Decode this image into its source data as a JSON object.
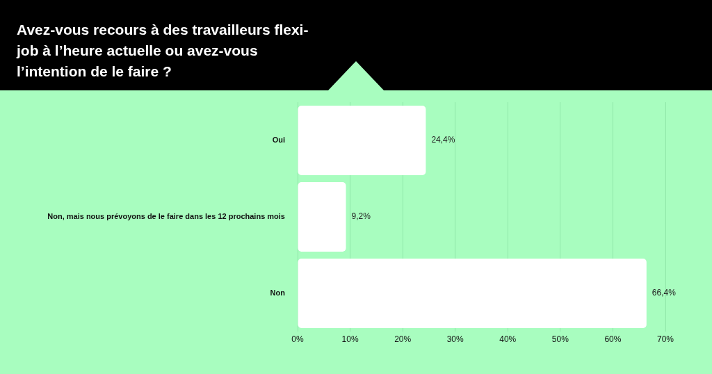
{
  "chart_data": {
    "type": "bar",
    "orientation": "horizontal",
    "title": "Avez-vous recours à des travailleurs flexi-job à l’heure actuelle ou avez-vous l’intention de le faire ?",
    "categories": [
      "Oui",
      "Non, mais nous prévoyons de le faire dans les 12 prochains mois",
      "Non"
    ],
    "values": [
      24.4,
      9.2,
      66.4
    ],
    "color": "#ffffff",
    "value_labels": [
      "24,4%",
      "9,2%",
      "66,4%"
    ],
    "xlim": [
      0,
      70
    ],
    "xticks": [
      {
        "value": 0,
        "label": "0%"
      },
      {
        "value": 10,
        "label": "10%"
      },
      {
        "value": 20,
        "label": "20%"
      },
      {
        "value": 30,
        "label": "30%"
      },
      {
        "value": 40,
        "label": "40%"
      },
      {
        "value": 50,
        "label": "50%"
      },
      {
        "value": 60,
        "label": "60%"
      },
      {
        "value": 70,
        "label": "70%"
      }
    ],
    "grid": "x",
    "legend": false
  }
}
